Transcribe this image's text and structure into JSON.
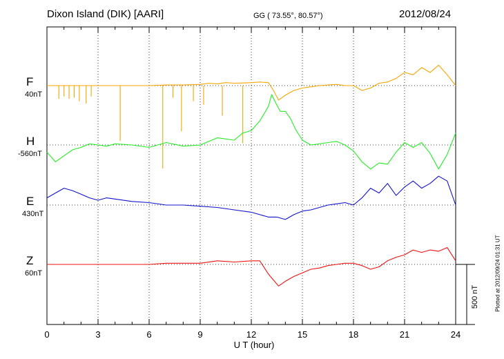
{
  "header": {
    "station": "Dixon Island (DIK)  [AARI]",
    "coords": "GG ( 73.55°,  80.57°)",
    "date": "2012/08/24"
  },
  "footer": {
    "xlabel": "U T (hour)",
    "scale_label": "500 nT",
    "plotted": "Plotted at 2012/09/24 01:31  UT"
  },
  "chart_data": {
    "type": "line",
    "xlabel": "U T (hour)",
    "xlim": [
      0,
      24
    ],
    "xticks": [
      "0",
      "3",
      "6",
      "9",
      "12",
      "15",
      "18",
      "21",
      "24"
    ],
    "grid": true,
    "scale_bar_nT": 500,
    "series": [
      {
        "name": "F",
        "baseline_label": "40nT",
        "color": "#f5a500",
        "x": [
          0,
          1,
          2,
          3,
          4,
          5,
          6,
          7,
          8,
          9,
          9.5,
          10,
          10.5,
          11,
          11.5,
          12,
          12.5,
          13,
          13.3,
          13.6,
          14,
          14.5,
          15,
          15.5,
          16,
          16.5,
          17,
          17.5,
          18,
          18.5,
          19,
          19.5,
          20,
          20.5,
          21,
          21.5,
          22,
          22.5,
          23,
          23.5,
          24
        ],
        "y": [
          0,
          0,
          0,
          0,
          0,
          0,
          0,
          5,
          5,
          10,
          20,
          15,
          25,
          20,
          22,
          25,
          30,
          25,
          -40,
          -120,
          -80,
          -40,
          -20,
          -10,
          0,
          5,
          10,
          0,
          0,
          -40,
          -20,
          20,
          30,
          60,
          110,
          90,
          150,
          110,
          170,
          90,
          0
        ],
        "spikes": [
          {
            "x": 0.7,
            "y": -110
          },
          {
            "x": 1.0,
            "y": -90
          },
          {
            "x": 1.3,
            "y": -110
          },
          {
            "x": 1.6,
            "y": -100
          },
          {
            "x": 1.9,
            "y": -130
          },
          {
            "x": 2.3,
            "y": -150
          },
          {
            "x": 2.6,
            "y": -90
          },
          {
            "x": 4.3,
            "y": -460
          },
          {
            "x": 6.8,
            "y": -690
          },
          {
            "x": 7.4,
            "y": -100
          },
          {
            "x": 7.9,
            "y": -380
          },
          {
            "x": 8.6,
            "y": -130
          },
          {
            "x": 9.2,
            "y": -160
          },
          {
            "x": 10.3,
            "y": -250
          },
          {
            "x": 11.5,
            "y": -480
          }
        ]
      },
      {
        "name": "H",
        "baseline_label": "-560nT",
        "color": "#22ee22",
        "x": [
          0,
          0.5,
          1,
          1.5,
          2,
          2.5,
          3,
          3.5,
          4,
          5,
          6,
          7,
          8,
          9,
          10,
          11,
          11.5,
          12,
          12.5,
          13,
          13.2,
          13.4,
          13.7,
          14,
          14.3,
          14.6,
          15,
          15.5,
          16,
          16.5,
          17,
          17.5,
          18,
          18.5,
          19,
          19.5,
          20,
          20.5,
          21,
          21.5,
          22,
          22.5,
          23,
          23.5,
          24
        ],
        "y": [
          -60,
          -140,
          -90,
          -40,
          -20,
          10,
          0,
          -10,
          10,
          0,
          -20,
          20,
          -10,
          0,
          60,
          40,
          100,
          120,
          200,
          320,
          420,
          360,
          280,
          280,
          220,
          130,
          40,
          0,
          10,
          20,
          30,
          0,
          -50,
          -140,
          -200,
          -150,
          -160,
          -60,
          20,
          -20,
          20,
          -70,
          -200,
          -80,
          100
        ]
      },
      {
        "name": "E",
        "baseline_label": "430nT",
        "color": "#1111cc",
        "x": [
          0,
          0.5,
          1,
          1.5,
          2,
          2.5,
          3,
          3.5,
          4,
          5,
          6,
          7,
          8,
          9,
          10,
          11,
          12,
          12.5,
          13,
          13.5,
          14,
          14.5,
          15,
          15.5,
          16,
          16.5,
          17,
          17.5,
          18,
          18.5,
          19,
          19.5,
          20,
          20.5,
          21,
          21.5,
          22,
          22.5,
          23,
          23.5,
          24
        ],
        "y": [
          60,
          100,
          140,
          120,
          90,
          60,
          40,
          60,
          50,
          30,
          20,
          0,
          0,
          -10,
          -20,
          -40,
          -60,
          -80,
          -100,
          -100,
          -120,
          -80,
          -50,
          -40,
          -20,
          0,
          10,
          20,
          0,
          60,
          140,
          100,
          180,
          80,
          150,
          200,
          140,
          180,
          240,
          200,
          0
        ]
      },
      {
        "name": "Z",
        "baseline_label": "60nT",
        "color": "#ee1111",
        "x": [
          0,
          1,
          2,
          3,
          4,
          5,
          6,
          7,
          8,
          9,
          10,
          11,
          12,
          12.5,
          13,
          13.3,
          13.6,
          14,
          14.5,
          15,
          15.5,
          16,
          16.5,
          17,
          17.5,
          18,
          18.5,
          19,
          19.5,
          20,
          20.5,
          21,
          21.5,
          22,
          22.5,
          23,
          23.5,
          24
        ],
        "y": [
          0,
          0,
          0,
          0,
          0,
          0,
          0,
          10,
          10,
          10,
          30,
          20,
          30,
          30,
          -80,
          -130,
          -180,
          -140,
          -100,
          -70,
          -40,
          -30,
          -10,
          0,
          10,
          10,
          -10,
          -40,
          -20,
          30,
          60,
          80,
          120,
          100,
          120,
          110,
          140,
          30
        ]
      }
    ]
  }
}
